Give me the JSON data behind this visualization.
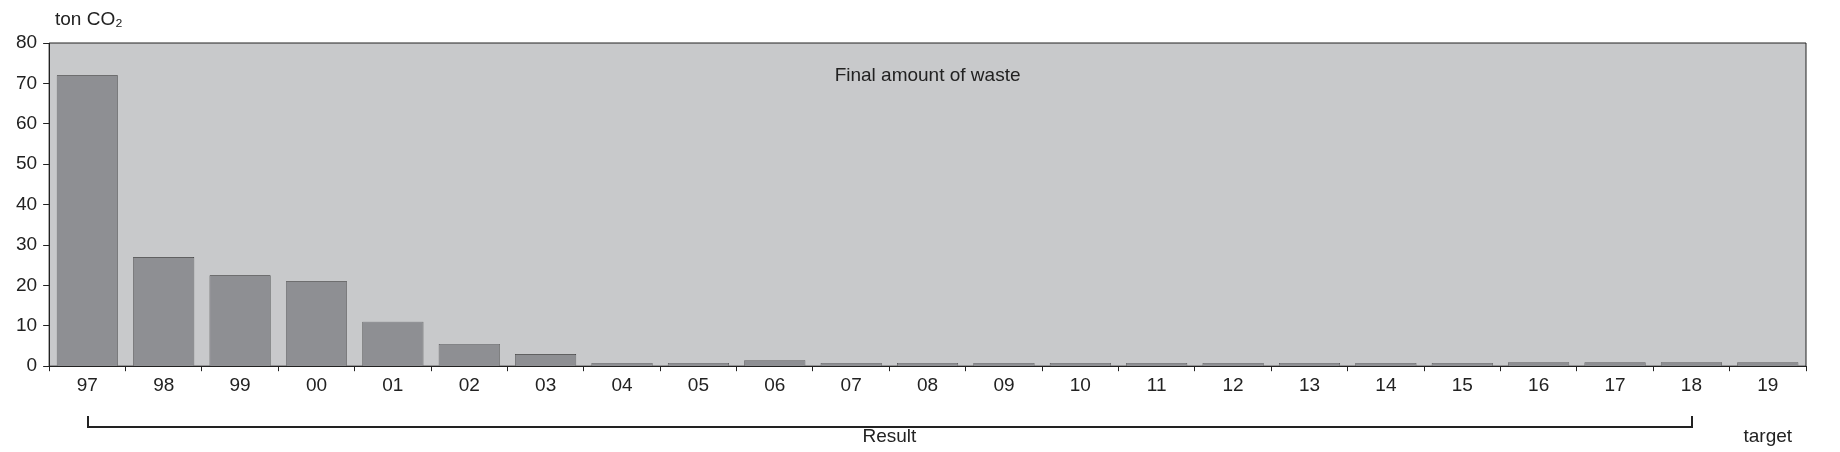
{
  "chart_data": {
    "type": "bar",
    "title": "Final amount of waste",
    "ylabel": "ton CO₂",
    "categories": [
      "97",
      "98",
      "99",
      "00",
      "01",
      "02",
      "03",
      "04",
      "05",
      "06",
      "07",
      "08",
      "09",
      "10",
      "11",
      "12",
      "13",
      "14",
      "15",
      "16",
      "17",
      "18",
      "19"
    ],
    "values": [
      72,
      27,
      22.5,
      21,
      11,
      5.5,
      3,
      0.8,
      0.8,
      1.5,
      0.8,
      0.8,
      0.8,
      0.8,
      0.8,
      0.8,
      0.8,
      0.8,
      0.8,
      1,
      1,
      1,
      1
    ],
    "color": "#8e8f93",
    "ylim": [
      0,
      80
    ],
    "yticks": [
      0,
      10,
      20,
      30,
      40,
      50,
      60,
      70,
      80
    ],
    "grid": false,
    "legend": false,
    "annotations": [
      "Result",
      "target"
    ]
  }
}
